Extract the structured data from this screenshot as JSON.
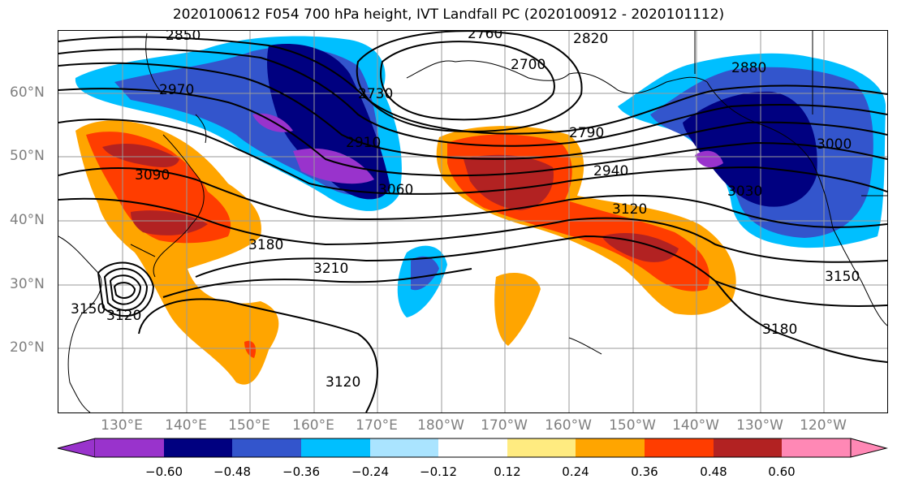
{
  "title": "2020100612 F054 700 hPa height, IVT Landfall PC (2020100912 - 2020101112)",
  "lat_labels": [
    "60°N",
    "50°N",
    "40°N",
    "30°N",
    "20°N"
  ],
  "lon_labels": [
    "130°E",
    "140°E",
    "150°E",
    "160°E",
    "170°E",
    "180°W",
    "170°W",
    "160°W",
    "150°W",
    "140°W",
    "130°W",
    "120°W"
  ],
  "contour_labels": [
    "2850",
    "2760",
    "2820",
    "2700",
    "2880",
    "2970",
    "2730",
    "2790",
    "2910",
    "2940",
    "3000",
    "3090",
    "3060",
    "3030",
    "3120",
    "3180",
    "3210",
    "3150",
    "3120",
    "3180",
    "3120",
    "3150"
  ],
  "colorbar": {
    "colors": [
      "#9933cc",
      "#000080",
      "#3355cc",
      "#00bfff",
      "#aae4ff",
      "#ffffff",
      "#ffeb80",
      "#ffa500",
      "#ff3d00",
      "#b22222",
      "#ff88b5"
    ],
    "tick_labels": [
      "−0.60",
      "−0.48",
      "−0.36",
      "−0.24",
      "−0.12",
      "0.12",
      "0.24",
      "0.36",
      "0.48",
      "0.60"
    ]
  }
}
